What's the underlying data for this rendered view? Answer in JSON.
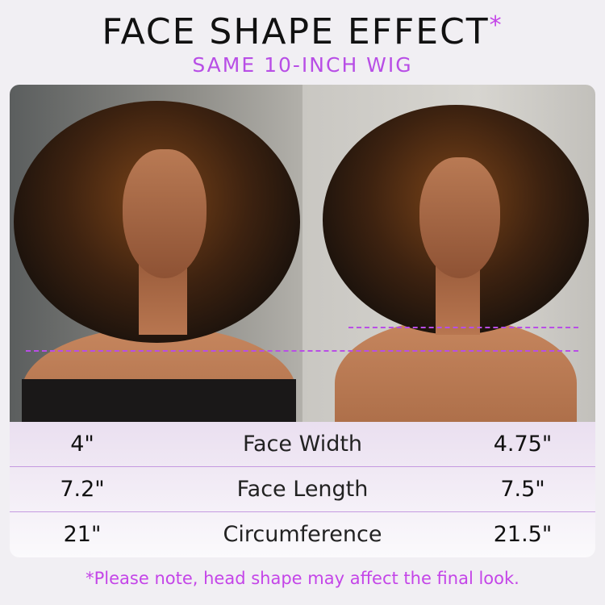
{
  "header": {
    "title": "FACE SHAPE EFFECT",
    "title_mark": "*",
    "subtitle": "SAME 10-INCH WIG"
  },
  "colors": {
    "accent": "#b84ee6",
    "guide_line": "#b84ee6"
  },
  "photos": [
    {
      "label": "left-model"
    },
    {
      "label": "right-model"
    }
  ],
  "comparison": {
    "rows": [
      {
        "left": "4\"",
        "metric": "Face Width",
        "right": "4.75\""
      },
      {
        "left": "7.2\"",
        "metric": "Face Length",
        "right": "7.5\""
      },
      {
        "left": "21\"",
        "metric": "Circumference",
        "right": "21.5\""
      }
    ]
  },
  "footer": {
    "note": "*Please note, head shape may affect the final look."
  }
}
